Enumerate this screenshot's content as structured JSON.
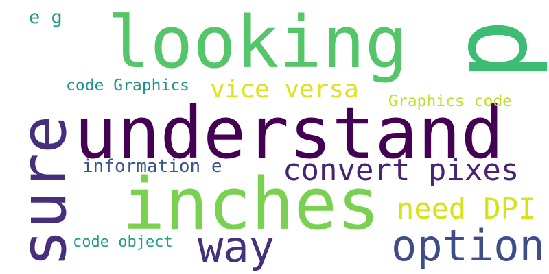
{
  "words": {
    "understand": {
      "text": "understand",
      "color": "#440154"
    },
    "inches": {
      "text": "inches",
      "color": "#7ad151"
    },
    "looking": {
      "text": "looking",
      "color": "#54c568"
    },
    "sure": {
      "text": "sure",
      "color": "#472f7d"
    },
    "p": {
      "text": "p",
      "color": "#3dbc74"
    },
    "option": {
      "text": "option",
      "color": "#3e4c8a"
    },
    "way": {
      "text": "way",
      "color": "#46307e"
    },
    "convert_pixes": {
      "text": "convert pixes",
      "color": "#482374"
    },
    "need_dpi": {
      "text": "need DPI",
      "color": "#d8e219"
    },
    "vice_versa": {
      "text": "vice versa",
      "color": "#dde318"
    },
    "code_graphics": {
      "text": "code Graphics",
      "color": "#20928c"
    },
    "graphics_code": {
      "text": "Graphics code",
      "color": "#bddf26"
    },
    "information_e": {
      "text": "information e",
      "color": "#39568c"
    },
    "code_object": {
      "text": "code object",
      "color": "#1fa088"
    },
    "e_g": {
      "text": "e g",
      "color": "#1f9a8a"
    }
  }
}
